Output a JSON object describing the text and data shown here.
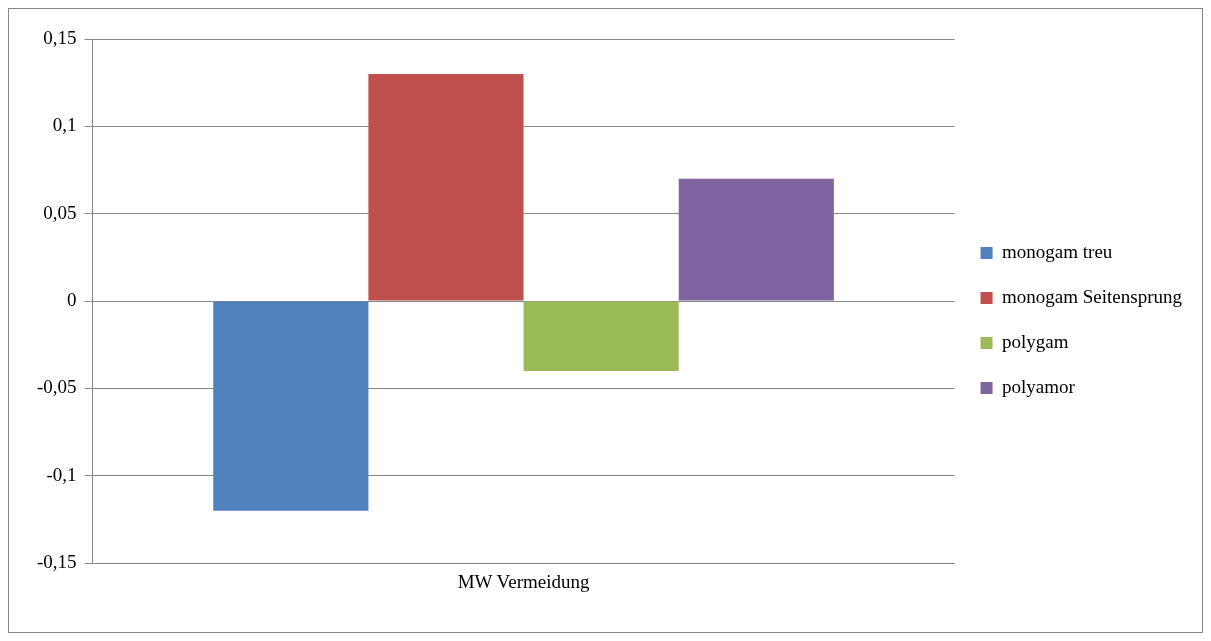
{
  "chart_data": {
    "type": "bar",
    "categories": [
      "MW Vermeidung"
    ],
    "series": [
      {
        "name": "monogam treu",
        "color": "#4f81bd",
        "values": [
          -0.12
        ]
      },
      {
        "name": "monogam Seitensprung",
        "color": "#c0504d",
        "values": [
          0.13
        ]
      },
      {
        "name": "polygam",
        "color": "#9bbb59",
        "values": [
          -0.04
        ]
      },
      {
        "name": "polyamor",
        "color": "#8064a2",
        "values": [
          0.07
        ]
      }
    ],
    "ylim": [
      -0.15,
      0.15
    ],
    "yticks": [
      {
        "value": -0.15,
        "label": "-0,15"
      },
      {
        "value": -0.1,
        "label": "-0,1"
      },
      {
        "value": -0.05,
        "label": "-0,05"
      },
      {
        "value": 0,
        "label": "0"
      },
      {
        "value": 0.05,
        "label": "0,05"
      },
      {
        "value": 0.1,
        "label": "0,1"
      },
      {
        "value": 0.15,
        "label": "0,15"
      }
    ],
    "grid": "y",
    "legend": "right"
  }
}
